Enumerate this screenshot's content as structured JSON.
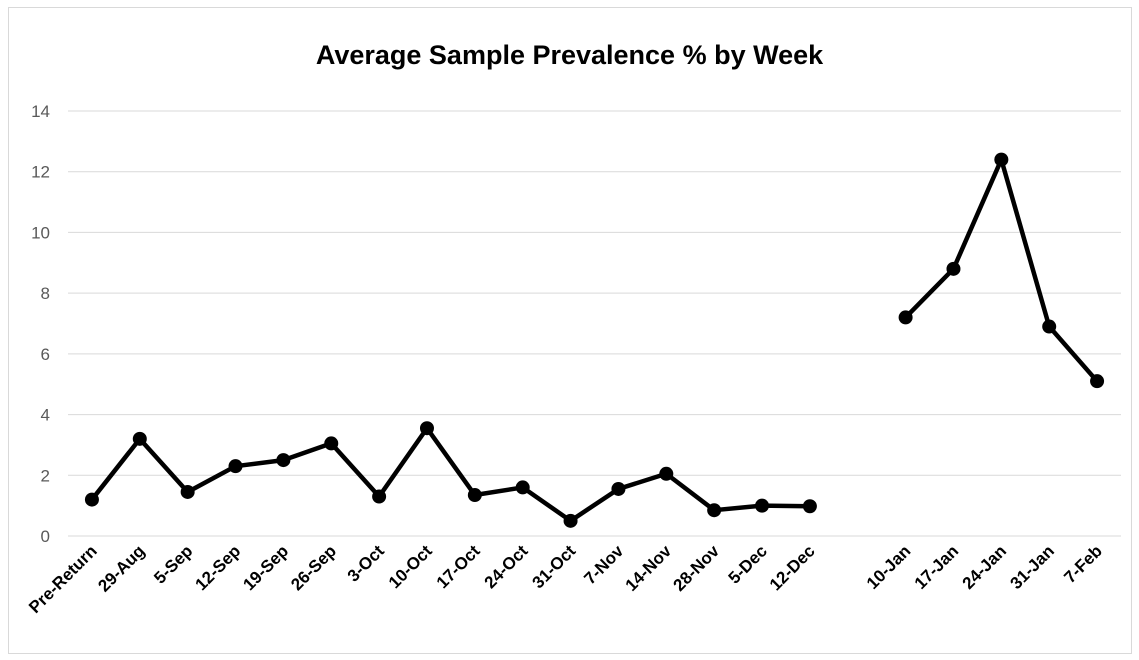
{
  "chart_data": {
    "type": "line",
    "title": "Average Sample Prevalence % by Week",
    "xlabel": "",
    "ylabel": "",
    "ylim": [
      0,
      14
    ],
    "yticks": [
      0,
      2,
      4,
      6,
      8,
      10,
      12,
      14
    ],
    "grid": true,
    "legend": "none",
    "categories": [
      "Pre-Return",
      "29-Aug",
      "5-Sep",
      "12-Sep",
      "19-Sep",
      "26-Sep",
      "3-Oct",
      "10-Oct",
      "17-Oct",
      "24-Oct",
      "31-Oct",
      "7-Nov",
      "14-Nov",
      "28-Nov",
      "5-Dec",
      "12-Dec",
      "",
      "10-Jan",
      "17-Jan",
      "24-Jan",
      "31-Jan",
      "7-Feb"
    ],
    "series": [
      {
        "values": [
          1.2,
          3.2,
          1.45,
          2.3,
          2.5,
          3.05,
          1.3,
          3.55,
          1.35,
          1.6,
          0.5,
          1.55,
          2.05,
          0.85,
          1.0,
          0.98,
          null,
          7.2,
          8.8,
          12.4,
          6.9,
          5.1
        ],
        "color": "#000000"
      }
    ]
  }
}
